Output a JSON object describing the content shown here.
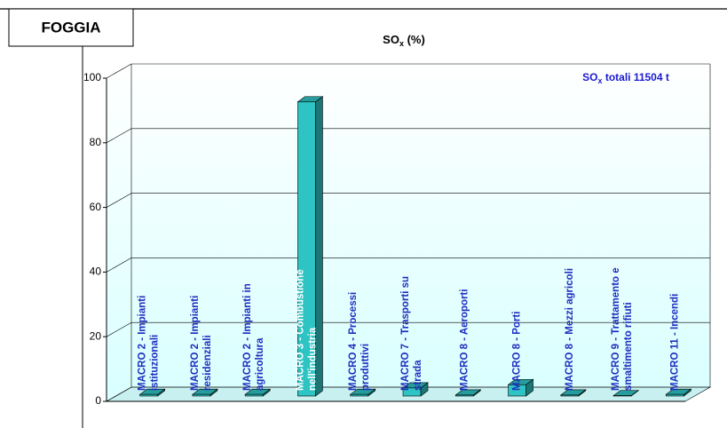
{
  "header": "FOGGIA",
  "chart_data": {
    "type": "bar3d",
    "title": {
      "main": "SO",
      "sub": "x",
      "rest": " (%)"
    },
    "annotation": {
      "main": "SO",
      "sub": "x",
      "rest": " totali 11504  t"
    },
    "categories": [
      [
        "MACRO 2 - Impianti",
        "istituzionali"
      ],
      [
        "MACRO 2 - Impianti",
        "residenziali"
      ],
      [
        "MACRO 2 - Impianti in",
        "agricoltura"
      ],
      [
        "MACRO 3 - Combustione",
        "nell'industria"
      ],
      [
        "MACRO 4 - Processi",
        "produttivi"
      ],
      [
        "MACRO 7 - Trasporti su",
        "strada"
      ],
      [
        "MACRO 8 - Aeroporti"
      ],
      [
        "MACRO 8 - Porti"
      ],
      [
        "MACRO 8 - Mezzi agricoli"
      ],
      [
        "MACRO 9 - Trattamento e",
        "smaltimento rifiuti"
      ],
      [
        "MACRO 11 - Incendi"
      ]
    ],
    "values": [
      0.5,
      0.5,
      0.5,
      91,
      0.5,
      2.5,
      0.3,
      3.5,
      0.3,
      0.1,
      0.5
    ],
    "color": "#2ec4c4",
    "ylim": [
      0,
      100
    ],
    "yticks": [
      0,
      20,
      40,
      60,
      80,
      100
    ],
    "grid": true
  }
}
